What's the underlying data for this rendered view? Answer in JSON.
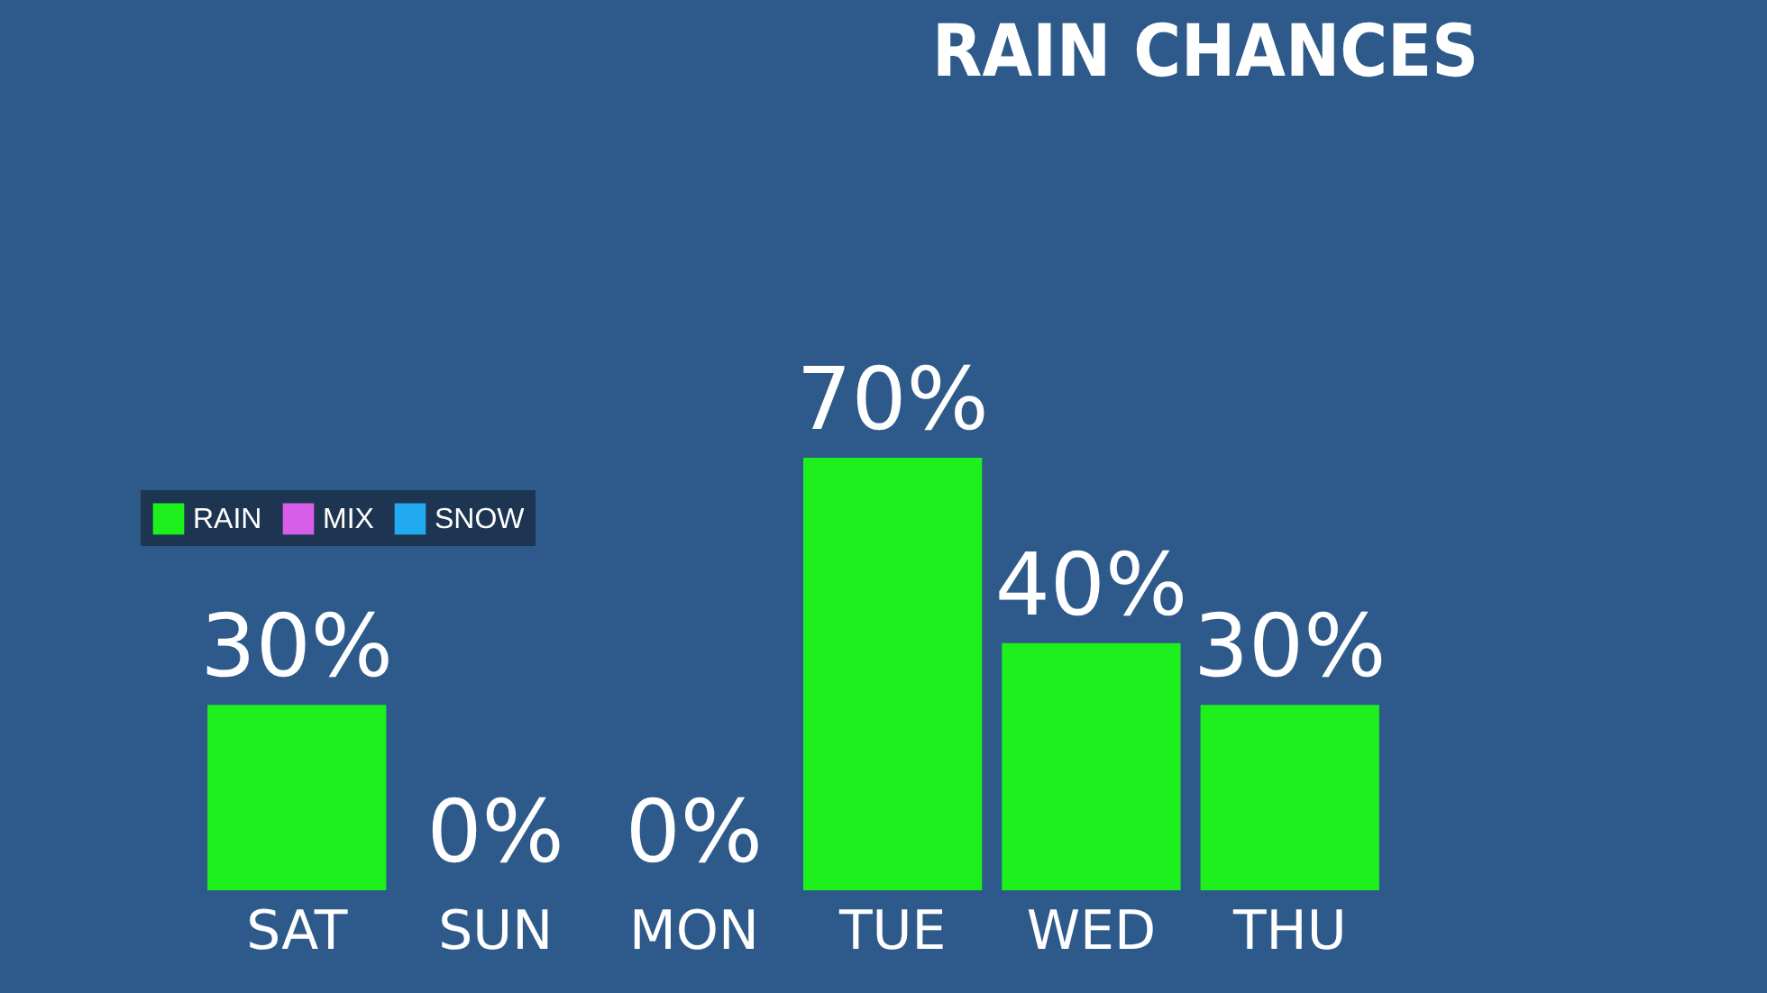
{
  "chart_data": {
    "type": "bar",
    "title": "RAIN CHANCES",
    "categories": [
      "SAT",
      "SUN",
      "MON",
      "TUE",
      "WED",
      "THU"
    ],
    "series": [
      {
        "name": "RAIN",
        "color": "#1ef01e",
        "values": [
          30,
          0,
          0,
          70,
          40,
          30
        ],
        "value_labels": [
          "30%",
          "0%",
          "0%",
          "70%",
          "40%",
          "30%"
        ]
      },
      {
        "name": "MIX",
        "color": "#d65ee8",
        "values": [
          null,
          null,
          null,
          null,
          null,
          null
        ]
      },
      {
        "name": "SNOW",
        "color": "#22aaf0",
        "values": [
          null,
          null,
          null,
          null,
          null,
          null
        ]
      }
    ],
    "legend": "top left",
    "grid": false
  }
}
